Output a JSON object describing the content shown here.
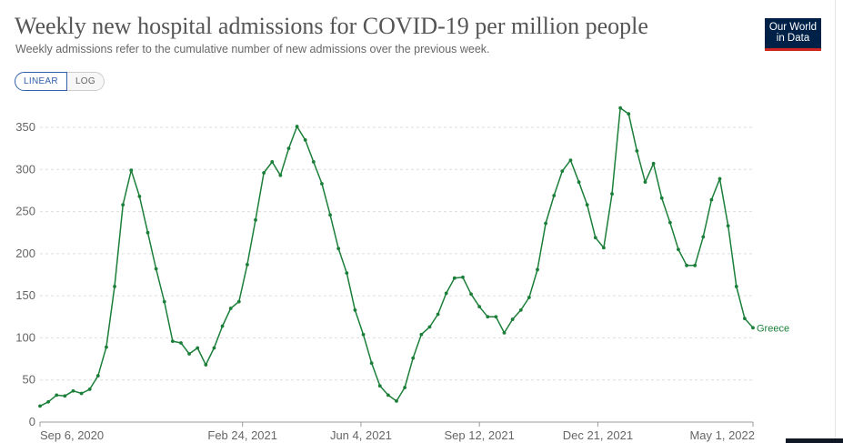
{
  "header": {
    "title": "Weekly new hospital admissions for COVID-19 per million people",
    "subtitle": "Weekly admissions refer to the cumulative number of new admissions over the previous week."
  },
  "logo": {
    "line1": "Our World",
    "line2": "in Data"
  },
  "scale_toggle": {
    "linear_label": "LINEAR",
    "log_label": "LOG",
    "selected": "LINEAR"
  },
  "colors": {
    "series": "#1b7f39",
    "grid": "#dddddd",
    "axis": "#999999"
  },
  "chart_data": {
    "type": "line",
    "title": "Weekly new hospital admissions for COVID-19 per million people",
    "subtitle": "Weekly admissions refer to the cumulative number of new admissions over the previous week.",
    "xlabel": "",
    "ylabel": "",
    "ylim": [
      0,
      375
    ],
    "yticks": [
      0,
      50,
      100,
      150,
      200,
      250,
      300,
      350
    ],
    "xticks": [
      "Sep 6, 2020",
      "Feb 24, 2021",
      "Jun 4, 2021",
      "Sep 12, 2021",
      "Dec 21, 2021",
      "May 1, 2022"
    ],
    "grid": "horizontal-dashed",
    "legend": "end-of-line label",
    "series": [
      {
        "name": "Greece",
        "color": "#1b7f39",
        "x_start": "Sep 6, 2020",
        "x_step_days": 7,
        "values": [
          19,
          24,
          32,
          31,
          37,
          34,
          39,
          55,
          89,
          161,
          258,
          299,
          268,
          225,
          182,
          143,
          96,
          94,
          81,
          88,
          68,
          88,
          114,
          135,
          143,
          187,
          240,
          296,
          309,
          293,
          325,
          351,
          335,
          309,
          283,
          246,
          206,
          177,
          133,
          104,
          70,
          43,
          32,
          25,
          41,
          76,
          104,
          113,
          128,
          153,
          171,
          172,
          152,
          137,
          125,
          125,
          106,
          122,
          133,
          148,
          181,
          236,
          269,
          298,
          311,
          285,
          258,
          219,
          207,
          271,
          373,
          366,
          322,
          285,
          307,
          266,
          237,
          205,
          186,
          186,
          220,
          264,
          289,
          233,
          161,
          123,
          112
        ]
      }
    ]
  }
}
